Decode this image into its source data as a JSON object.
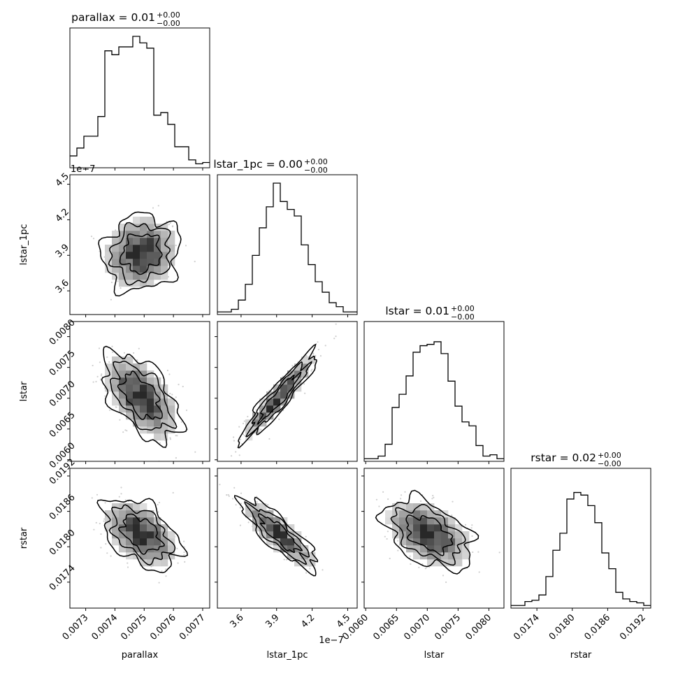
{
  "chart_data": {
    "type": "corner",
    "parameters": [
      "parallax",
      "lstar_1pc",
      "lstar",
      "rstar"
    ],
    "titles": [
      {
        "param": "parallax",
        "text": "parallax = 0.01",
        "sup": "+0.00",
        "sub": "−0.00"
      },
      {
        "param": "lstar_1pc",
        "text": "lstar_1pc = 0.00",
        "sup": "+0.00",
        "sub": "−0.00"
      },
      {
        "param": "lstar",
        "text": "lstar = 0.01",
        "sup": "+0.00",
        "sub": "−0.00"
      },
      {
        "param": "rstar",
        "text": "rstar = 0.02",
        "sup": "+0.00",
        "sub": "−0.00"
      }
    ],
    "axis_labels": {
      "x": [
        "parallax",
        "lstar_1pc",
        "lstar",
        "rstar"
      ],
      "y": [
        "",
        "lstar_1pc",
        "lstar",
        "rstar"
      ]
    },
    "offset_labels": {
      "lstar_1pc_x": "1e−7",
      "lstar_1pc_y": "1e−7"
    },
    "ranges": {
      "parallax": [
        0.007246,
        0.007724
      ],
      "lstar_1pc": [
        3.4e-07,
        4.58e-07
      ],
      "lstar": [
        0.005975,
        0.008245
      ],
      "rstar": [
        0.01696,
        0.01933
      ]
    },
    "ticks": {
      "parallax": {
        "values": [
          0.0073,
          0.0074,
          0.0075,
          0.0076,
          0.0077
        ],
        "labels": [
          "0.0073",
          "0.0074",
          "0.0075",
          "0.0076",
          "0.0077"
        ]
      },
      "lstar_1pc": {
        "values": [
          3.6e-07,
          3.9e-07,
          4.2e-07,
          4.5e-07
        ],
        "labels": [
          "3.6",
          "3.9",
          "4.2",
          "4.5"
        ]
      },
      "lstar": {
        "values": [
          0.006,
          0.0065,
          0.007,
          0.0075,
          0.008
        ],
        "labels": [
          "0.0060",
          "0.0065",
          "0.0070",
          "0.0075",
          "0.0080"
        ]
      },
      "rstar": {
        "values": [
          0.0174,
          0.018,
          0.0186,
          0.0192
        ],
        "labels": [
          "0.0174",
          "0.0180",
          "0.0186",
          "0.0192"
        ]
      }
    },
    "histograms": {
      "parallax": [
        0.09,
        0.15,
        0.24,
        0.24,
        0.39,
        0.89,
        0.86,
        0.92,
        0.92,
        1.0,
        0.95,
        0.91,
        0.4,
        0.42,
        0.33,
        0.16,
        0.16,
        0.06,
        0.03,
        0.04
      ],
      "lstar_1pc": [
        0.02,
        0.02,
        0.04,
        0.11,
        0.23,
        0.45,
        0.66,
        0.82,
        1.0,
        0.86,
        0.8,
        0.75,
        0.53,
        0.38,
        0.25,
        0.17,
        0.09,
        0.06,
        0.02,
        0.02
      ],
      "lstar": [
        0.02,
        0.02,
        0.04,
        0.13,
        0.41,
        0.51,
        0.65,
        0.83,
        0.88,
        0.89,
        0.91,
        0.82,
        0.61,
        0.42,
        0.3,
        0.27,
        0.12,
        0.04,
        0.05,
        0.02
      ],
      "rstar": [
        0.02,
        0.02,
        0.05,
        0.06,
        0.1,
        0.24,
        0.44,
        0.57,
        0.83,
        0.88,
        0.86,
        0.78,
        0.65,
        0.42,
        0.3,
        0.12,
        0.07,
        0.05,
        0.04,
        0.02
      ]
    },
    "correlations": {
      "1,0": 0.1,
      "2,0": -0.55,
      "2,1": 0.93,
      "3,0": -0.45,
      "3,1": -0.85,
      "3,2": -0.45
    },
    "means": {
      "parallax": 0.00749,
      "lstar_1pc": 3.92e-07,
      "lstar": 0.00702,
      "rstar": 0.01822
    },
    "sigmas": {
      "parallax": 6.6e-05,
      "lstar_1pc": 1.6e-08,
      "lstar": 0.00036,
      "rstar": 0.0003
    },
    "contour_levels": [
      1.0,
      1.5,
      2.0
    ]
  }
}
